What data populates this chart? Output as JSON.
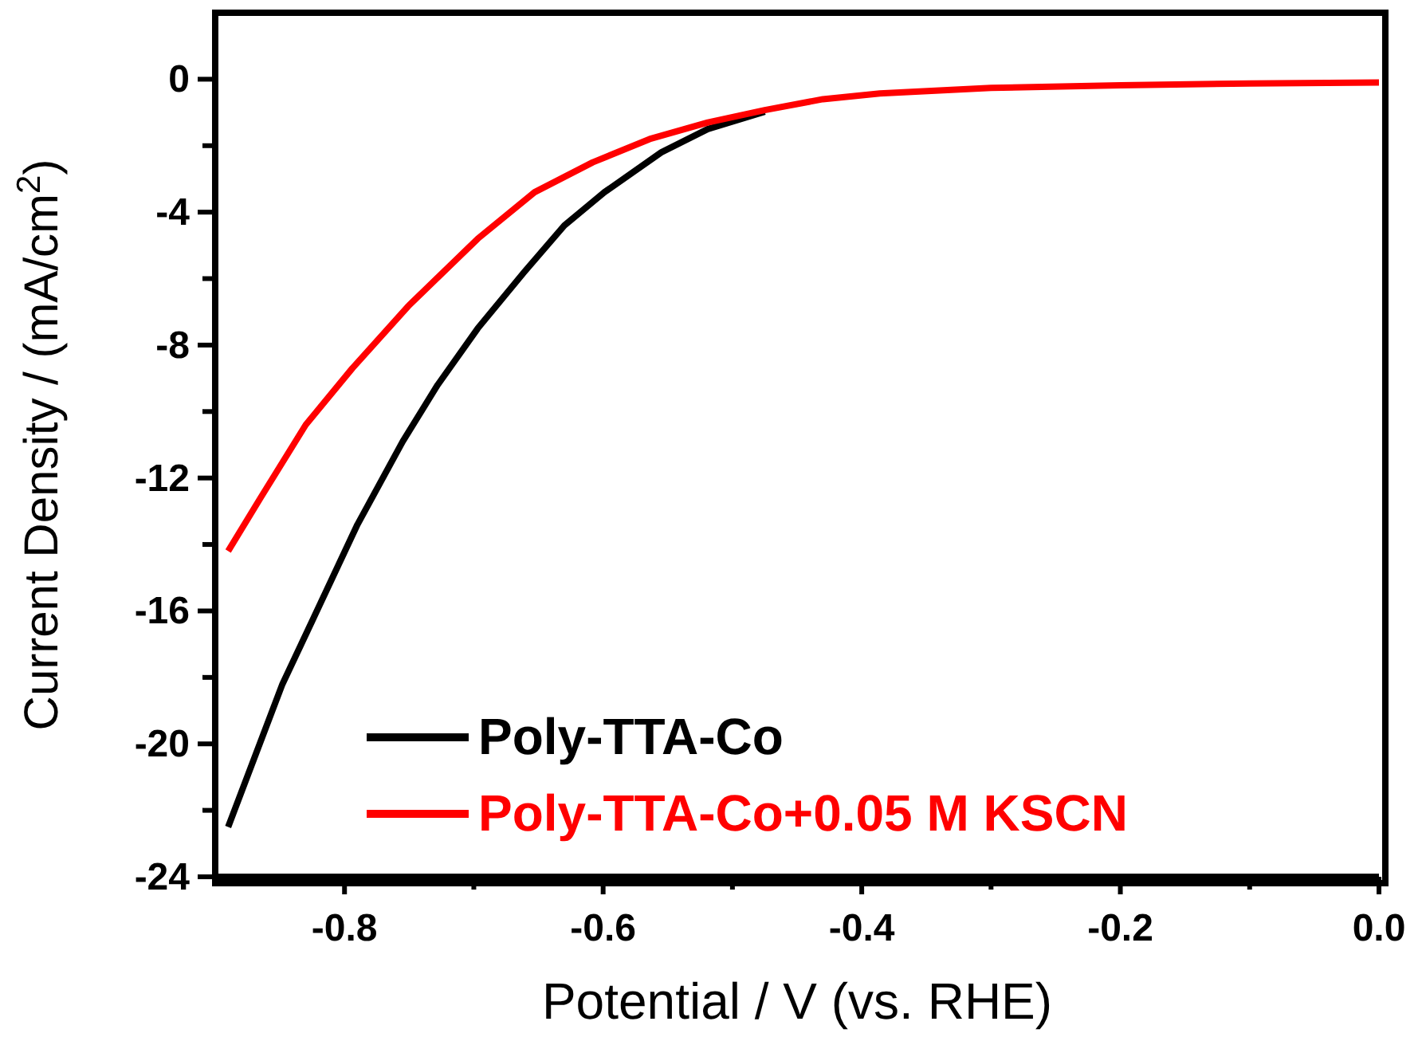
{
  "chart_data": {
    "type": "line",
    "xlabel": "Potential / V (vs. RHE)",
    "ylabel": "Current Density / (mA/cm$^{2}$)",
    "xlim": [
      -0.9,
      0
    ],
    "ylim": [
      -24,
      2
    ],
    "xticks": [
      -0.8,
      {
        "value": -0.7,
        "label": null
      },
      -0.6,
      {
        "value": -0.5,
        "label": null
      },
      -0.4,
      {
        "value": -0.3,
        "label": null
      },
      -0.2,
      {
        "value": -0.1,
        "label": null
      },
      {
        "value": 0,
        "label": "0.0"
      }
    ],
    "yticks": [
      {
        "value": -24,
        "label": "-24"
      },
      {
        "value": -22,
        "label": null
      },
      -20,
      {
        "value": -18,
        "label": null
      },
      -16,
      {
        "value": -14,
        "label": null
      },
      -12,
      {
        "value": -10,
        "label": null
      },
      -8,
      {
        "value": -6,
        "label": null
      },
      -4,
      {
        "value": -2,
        "label": null
      },
      0
    ],
    "legend": "bottom",
    "grid": false,
    "marker": "none",
    "line_style": "solid",
    "series": [
      {
        "name": "Poly-TTA-Co",
        "color": "#000000",
        "x": [
          -0.89,
          -0.848,
          -0.825,
          -0.79,
          -0.755,
          -0.728,
          -0.697,
          -0.661,
          -0.63,
          -0.599,
          -0.555,
          -0.519,
          -0.475
        ],
        "values": [
          -22.5,
          -18.2,
          -16.3,
          -13.4,
          -10.9,
          -9.2,
          -7.5,
          -5.8,
          -4.4,
          -3.4,
          -2.2,
          -1.5,
          -0.98
        ]
      },
      {
        "name": "Poly-TTA-Co+0.05 M KSCN",
        "color": "#ff0000",
        "x": [
          -0.89,
          -0.865,
          -0.83,
          -0.794,
          -0.75,
          -0.697,
          -0.653,
          -0.608,
          -0.564,
          -0.519,
          -0.475,
          -0.43,
          -0.386,
          -0.3,
          -0.2,
          -0.1,
          0
        ],
        "values": [
          -14.2,
          -12.6,
          -10.4,
          -8.7,
          -6.8,
          -4.8,
          -3.4,
          -2.5,
          -1.8,
          -1.3,
          -0.93,
          -0.6,
          -0.43,
          -0.26,
          -0.18,
          -0.13,
          -0.1
        ]
      }
    ]
  }
}
